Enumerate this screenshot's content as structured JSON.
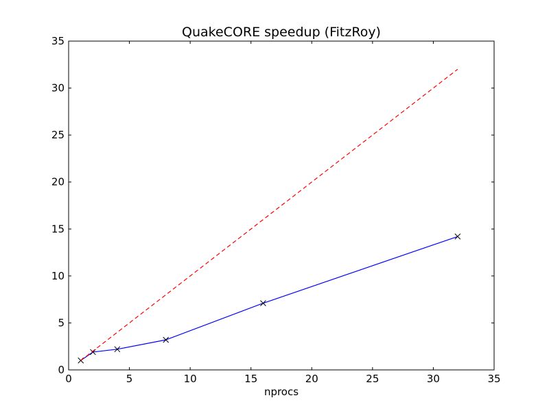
{
  "chart_data": {
    "type": "line",
    "title": "QuakeCORE speedup (FitzRoy)",
    "xlabel": "nprocs",
    "ylabel": "",
    "xlim": [
      0,
      35
    ],
    "ylim": [
      0,
      35
    ],
    "xticks": [
      0,
      5,
      10,
      15,
      20,
      25,
      30,
      35
    ],
    "yticks": [
      0,
      5,
      10,
      15,
      20,
      25,
      30,
      35
    ],
    "grid": false,
    "series": [
      {
        "x": [
          1,
          2,
          4,
          8,
          16,
          32
        ],
        "y": [
          1.0,
          1.9,
          2.2,
          3.2,
          7.1,
          14.2
        ],
        "color": "#0000ff",
        "linestyle": "solid",
        "marker": "x"
      },
      {
        "x": [
          1,
          2,
          4,
          8,
          16,
          32
        ],
        "y": [
          1,
          2,
          4,
          8,
          16,
          32
        ],
        "color": "#ff0000",
        "linestyle": "dashed",
        "marker": "none"
      }
    ]
  }
}
